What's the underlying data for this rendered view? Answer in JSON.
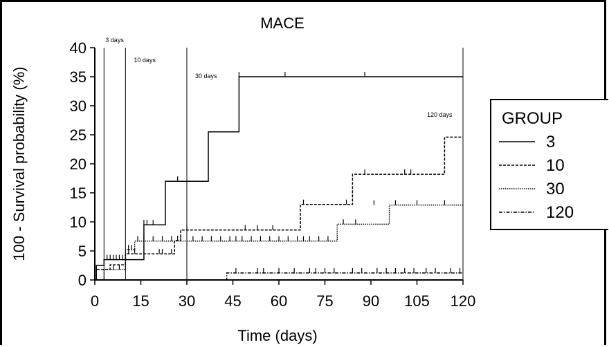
{
  "chart_data": {
    "type": "line",
    "title": "MACE",
    "xlabel": "Time (days)",
    "ylabel": "100 - Survival probability (%)",
    "xlim": [
      0,
      120
    ],
    "ylim": [
      0,
      40
    ],
    "xticks": [
      "0",
      "15",
      "30",
      "45",
      "60",
      "75",
      "90",
      "105",
      "120"
    ],
    "xtick_values": [
      0,
      15,
      30,
      45,
      60,
      75,
      90,
      105,
      120
    ],
    "yticks": [
      "0",
      "5",
      "10",
      "15",
      "20",
      "25",
      "30",
      "35",
      "40"
    ],
    "ytick_values": [
      0,
      5,
      10,
      15,
      20,
      25,
      30,
      35,
      40
    ],
    "grid": false,
    "legend": {
      "title": "GROUP",
      "position": "right"
    },
    "reference_lines": [
      {
        "x": 3,
        "label": "3 days"
      },
      {
        "x": 10,
        "label": "10 days"
      },
      {
        "x": 30,
        "label": "30 days"
      },
      {
        "x": 120,
        "label": "120 days"
      }
    ],
    "series": [
      {
        "name": "3",
        "line_style": "solid",
        "steps": [
          [
            0,
            0
          ],
          [
            0.5,
            2.5
          ],
          [
            3,
            3.5
          ],
          [
            16,
            9.5
          ],
          [
            23,
            17
          ],
          [
            37,
            25.5
          ],
          [
            47,
            35
          ],
          [
            120,
            35
          ]
        ],
        "censored": [
          [
            4,
            3.5
          ],
          [
            5,
            3.5
          ],
          [
            6,
            3.5
          ],
          [
            7,
            3.5
          ],
          [
            8,
            3.5
          ],
          [
            9,
            3.5
          ],
          [
            10,
            3.5
          ],
          [
            16,
            9.5
          ],
          [
            17,
            9.5
          ],
          [
            19,
            9.5
          ],
          [
            27,
            17
          ],
          [
            47,
            35
          ],
          [
            62,
            35
          ],
          [
            88,
            35
          ]
        ]
      },
      {
        "name": "10",
        "line_style": "dashed",
        "steps": [
          [
            0,
            0
          ],
          [
            0.5,
            1.8
          ],
          [
            5,
            2.6
          ],
          [
            10,
            4.5
          ],
          [
            26,
            6.8
          ],
          [
            28,
            8.6
          ],
          [
            67,
            13
          ],
          [
            84,
            18.2
          ],
          [
            114,
            24.6
          ],
          [
            120,
            24.6
          ]
        ],
        "censored": [
          [
            11,
            4.5
          ],
          [
            13,
            4.5
          ],
          [
            21,
            4.5
          ],
          [
            22,
            4.5
          ],
          [
            25,
            4.5
          ],
          [
            27,
            6.8
          ],
          [
            30,
            8.6
          ],
          [
            49,
            8.6
          ],
          [
            53,
            8.6
          ],
          [
            58,
            8.6
          ],
          [
            68,
            13
          ],
          [
            82,
            13
          ],
          [
            88,
            18.2
          ],
          [
            101,
            18.2
          ],
          [
            103,
            18.2
          ]
        ]
      },
      {
        "name": "30",
        "line_style": "dotted",
        "steps": [
          [
            0,
            0
          ],
          [
            3,
            1.8
          ],
          [
            10,
            5.2
          ],
          [
            13,
            6.7
          ],
          [
            79,
            9.6
          ],
          [
            96,
            12.9
          ],
          [
            120,
            12.9
          ]
        ],
        "censored": [
          [
            6,
            1.8
          ],
          [
            8,
            1.8
          ],
          [
            11,
            5.2
          ],
          [
            12,
            5.2
          ],
          [
            14,
            6.7
          ],
          [
            16,
            6.7
          ],
          [
            19,
            6.7
          ],
          [
            22,
            6.7
          ],
          [
            25,
            6.7
          ],
          [
            28,
            6.7
          ],
          [
            32,
            6.7
          ],
          [
            35,
            6.7
          ],
          [
            38,
            6.7
          ],
          [
            41,
            6.7
          ],
          [
            44,
            6.7
          ],
          [
            46,
            6.7
          ],
          [
            48,
            6.7
          ],
          [
            51,
            6.7
          ],
          [
            54,
            6.7
          ],
          [
            57,
            6.7
          ],
          [
            60,
            6.7
          ],
          [
            63,
            6.7
          ],
          [
            66,
            6.7
          ],
          [
            68,
            6.7
          ],
          [
            70,
            6.7
          ],
          [
            73,
            6.7
          ],
          [
            76,
            6.7
          ],
          [
            81,
            9.6
          ],
          [
            85,
            9.6
          ],
          [
            91,
            12.9
          ],
          [
            98,
            12.9
          ],
          [
            105,
            12.9
          ],
          [
            114,
            12.9
          ]
        ]
      },
      {
        "name": "120",
        "line_style": "dashdot",
        "steps": [
          [
            0,
            0
          ],
          [
            43,
            1.2
          ],
          [
            120,
            1.2
          ]
        ],
        "censored": [
          [
            46,
            1.2
          ],
          [
            53,
            1.2
          ],
          [
            55,
            1.2
          ],
          [
            60,
            1.2
          ],
          [
            65,
            1.2
          ],
          [
            70,
            1.2
          ],
          [
            72,
            1.2
          ],
          [
            75,
            1.2
          ],
          [
            78,
            1.2
          ],
          [
            84,
            1.2
          ],
          [
            87,
            1.2
          ],
          [
            92,
            1.2
          ],
          [
            95,
            1.2
          ],
          [
            98,
            1.2
          ],
          [
            101,
            1.2
          ],
          [
            104,
            1.2
          ],
          [
            108,
            1.2
          ],
          [
            111,
            1.2
          ],
          [
            116,
            1.2
          ],
          [
            119,
            1.2
          ]
        ]
      }
    ]
  }
}
